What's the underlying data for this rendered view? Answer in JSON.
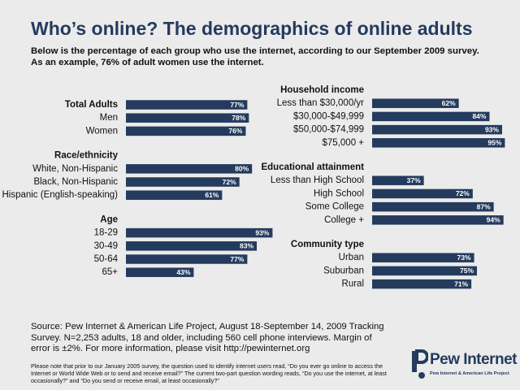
{
  "title": "Who’s online? The demographics of online adults",
  "subtitle_line1": "Below is the percentage of each group who use the internet, according to our September 2009 survey.",
  "subtitle_line2": "As an example, 76% of adult women use the internet.",
  "source": "Source: Pew Internet & American Life Project, August 18-September 14, 2009 Tracking Survey. N=2,253 adults, 18 and older, including 560 cell phone interviews. Margin of error is ±2%.  For more information, please visit http://pewinternet.org",
  "note": "Please note that prior to our January 2005 survey, the question used to identify internet users read, “Do you ever go online to access the Internet or World Wide Web or to send and receive email?” The current two-part question wording reads, “Do you use the internet, at least occasionally?” and “Do you send or receive email, at least occasionally?”",
  "logo": {
    "name": "Pew Internet",
    "tagline": "Pew Internet & American Life Project"
  },
  "colors": {
    "bar": "#243b5e",
    "title": "#243b5e",
    "background": "#ebebeb",
    "label_text": "#ffffff"
  },
  "chart_data": [
    {
      "type": "bar",
      "orientation": "horizontal",
      "xlim": [
        0,
        100
      ],
      "value_suffix": "%",
      "groups": [
        {
          "heading": "Total Adults",
          "heading_is_row": true,
          "categories": [
            "Total Adults",
            "Men",
            "Women"
          ],
          "values": [
            77,
            78,
            76
          ]
        },
        {
          "heading": "Race/ethnicity",
          "categories": [
            "White, Non-Hispanic",
            "Black, Non-Hispanic",
            "Hispanic (English-speaking)"
          ],
          "values": [
            80,
            72,
            61
          ]
        },
        {
          "heading": "Age",
          "categories": [
            "18-29",
            "30-49",
            "50-64",
            "65+"
          ],
          "values": [
            93,
            83,
            77,
            43
          ]
        }
      ]
    },
    {
      "type": "bar",
      "orientation": "horizontal",
      "xlim": [
        0,
        100
      ],
      "value_suffix": "%",
      "groups": [
        {
          "heading": "Household income",
          "categories": [
            "Less than $30,000/yr",
            "$30,000-$49,999",
            "$50,000-$74,999",
            "$75,000 +"
          ],
          "values": [
            62,
            84,
            93,
            95
          ]
        },
        {
          "heading": "Educational attainment",
          "categories": [
            "Less than High School",
            "High School",
            "Some College",
            "College +"
          ],
          "values": [
            37,
            72,
            87,
            94
          ]
        },
        {
          "heading": "Community type",
          "categories": [
            "Urban",
            "Suburban",
            "Rural"
          ],
          "values": [
            73,
            75,
            71
          ]
        }
      ]
    }
  ]
}
